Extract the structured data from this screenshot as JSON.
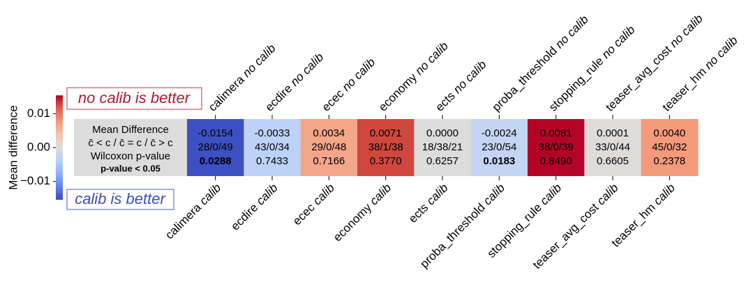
{
  "chart_data": {
    "type": "heatmap",
    "y_label": "Mean difference",
    "models": [
      "calimera",
      "ecdire",
      "ecec",
      "economy",
      "ects",
      "proba_threshold",
      "stopping_rule",
      "teaser_avg_cost",
      "teaser_hm"
    ],
    "top_suffix": "no calib",
    "bottom_suffix": "calib",
    "values": [
      -0.0154,
      -0.0033,
      0.0034,
      0.0071,
      0.0,
      -0.0024,
      0.0081,
      0.0001,
      0.004
    ],
    "value_labels": [
      "-0.0154",
      "-0.0033",
      "0.0034",
      "0.0071",
      "0.0000",
      "-0.0024",
      "0.0081",
      "0.0001",
      "0.0040"
    ],
    "counts": [
      "28/0/49",
      "43/0/34",
      "29/0/48",
      "38/1/38",
      "18/38/21",
      "23/0/54",
      "38/0/39",
      "33/0/44",
      "45/0/32"
    ],
    "p_values": [
      0.0288,
      0.7433,
      0.7166,
      0.377,
      0.6257,
      0.0183,
      0.849,
      0.6605,
      0.2378
    ],
    "p_value_labels": [
      "0.0288",
      "0.7433",
      "0.7166",
      "0.3770",
      "0.6257",
      "0.0183",
      "0.8490",
      "0.6605",
      "0.2378"
    ],
    "p_value_bold": [
      true,
      false,
      false,
      false,
      false,
      true,
      false,
      false,
      false
    ],
    "colors": [
      "#3d50c3",
      "#bdd2f6",
      "#f4a688",
      "#d0473d",
      "#dddcdc",
      "#c4d5f3",
      "#b40426",
      "#dedcdb",
      "#f49a7b"
    ],
    "legend": {
      "mean": "Mean Difference",
      "counts": "c̄ < c / c̄ = c / c̄ > c",
      "wilcoxon": "Wilcoxon p-value",
      "significant": "p-value < 0.05"
    },
    "colormap": [
      "#3b4cc0",
      "#6282ea",
      "#8db0fe",
      "#b8d0f9",
      "#dddcdc",
      "#f5c4ad",
      "#f49a7b",
      "#de604d",
      "#b40426"
    ],
    "ylim": [
      -0.0154,
      0.0154
    ],
    "yticks": [
      0.01,
      {
        "value": 0,
        "label": "0.00"
      },
      {
        "value": -0.01,
        "label": "−0.01"
      }
    ],
    "annotations": {
      "top": "no calib is better",
      "bottom": "calib is better"
    }
  }
}
